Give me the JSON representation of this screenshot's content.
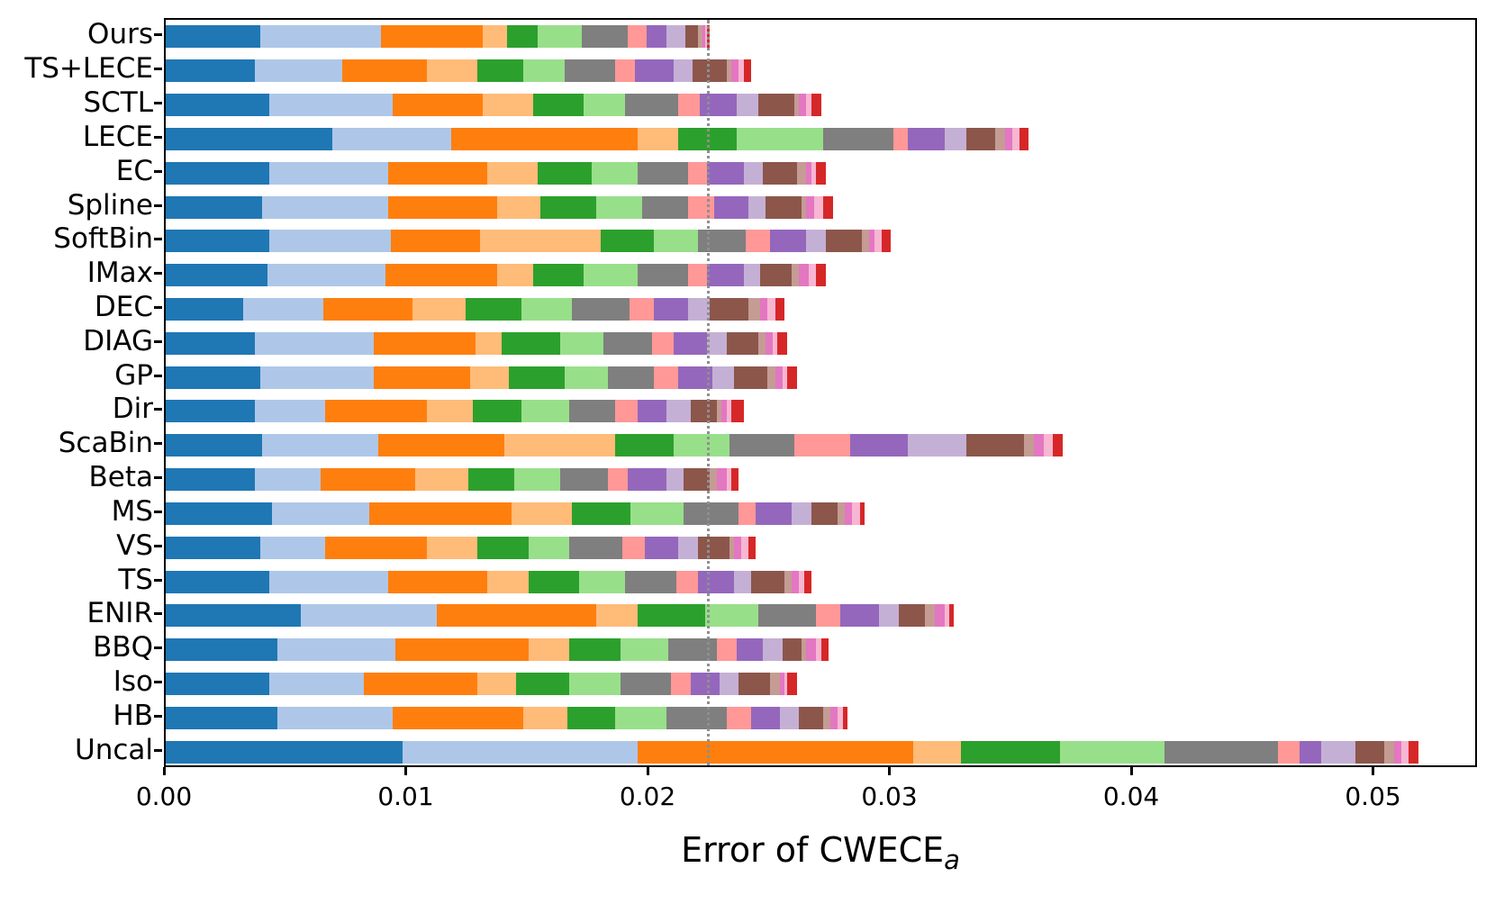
{
  "figure": {
    "background": "#ffffff",
    "spine_color": "#000000",
    "xlabel_base": "Error of CWECE",
    "xlabel_sub": "a"
  },
  "chart_data": {
    "type": "bar",
    "orientation": "horizontal-stacked",
    "title": "",
    "xlabel": "Error of CWECE_a",
    "ylabel": "",
    "grid": false,
    "legend": "none",
    "xlim": [
      0,
      0.0543
    ],
    "x_ticks": [
      "0.00",
      "0.01",
      "0.02",
      "0.03",
      "0.04",
      "0.05"
    ],
    "x_tick_values": [
      0,
      0.01,
      0.02,
      0.03,
      0.04,
      0.05
    ],
    "reference_line_x": 0.0224,
    "reference_line_color": "#8f8f8f",
    "reference_line_style": "dotted",
    "segment_names": [
      "blue",
      "light-blue",
      "orange",
      "light-orange",
      "green",
      "light-green",
      "gray",
      "salmon",
      "purple",
      "light-purple",
      "brown",
      "light-brown",
      "magenta",
      "light-pink",
      "red"
    ],
    "segment_colors": [
      "#1f77b4",
      "#aec7e8",
      "#ff7f0e",
      "#ffbb78",
      "#2ca02c",
      "#98df8a",
      "#7f7f7f",
      "#ff9896",
      "#9467bd",
      "#c5b0d5",
      "#8c564b",
      "#c49c94",
      "#e377c2",
      "#f7b6d2",
      "#d62728"
    ],
    "categories": [
      "Ours",
      "TS+LECE",
      "SCTL",
      "LECE",
      "EC",
      "Spline",
      "SoftBin",
      "IMax",
      "DEC",
      "DIAG",
      "GP",
      "Dir",
      "ScaBin",
      "Beta",
      "MS",
      "VS",
      "TS",
      "ENIR",
      "BBQ",
      "Iso",
      "HB",
      "Uncal"
    ],
    "values": [
      [
        0.0039,
        0.005,
        0.0042,
        0.001,
        0.0013,
        0.0018,
        0.0019,
        0.0008,
        0.0008,
        0.0008,
        0.0005,
        0.0002,
        0.0001,
        0.0001,
        0.0001
      ],
      [
        0.0037,
        0.0036,
        0.0035,
        0.0021,
        0.0019,
        0.0017,
        0.0021,
        0.0008,
        0.0016,
        0.0008,
        0.0014,
        0.0002,
        0.0003,
        0.0002,
        0.0003
      ],
      [
        0.0043,
        0.0051,
        0.0037,
        0.0021,
        0.0021,
        0.0017,
        0.0022,
        0.0009,
        0.0015,
        0.0009,
        0.0015,
        0.0002,
        0.0003,
        0.0002,
        0.0004
      ],
      [
        0.0069,
        0.0049,
        0.0077,
        0.0017,
        0.0024,
        0.0036,
        0.0029,
        0.0006,
        0.0015,
        0.0009,
        0.0012,
        0.0004,
        0.0003,
        0.0003,
        0.0004
      ],
      [
        0.0043,
        0.0049,
        0.0041,
        0.0021,
        0.0022,
        0.0019,
        0.0021,
        0.0008,
        0.0015,
        0.0008,
        0.0014,
        0.0004,
        0.0002,
        0.0002,
        0.0004
      ],
      [
        0.004,
        0.0052,
        0.0045,
        0.0018,
        0.0023,
        0.0019,
        0.0019,
        0.0011,
        0.0014,
        0.0007,
        0.0015,
        0.0002,
        0.0003,
        0.0004,
        0.0004
      ],
      [
        0.0043,
        0.005,
        0.0037,
        0.005,
        0.0022,
        0.0018,
        0.002,
        0.001,
        0.0015,
        0.0008,
        0.0015,
        0.0003,
        0.0002,
        0.0003,
        0.0004
      ],
      [
        0.0042,
        0.0049,
        0.0046,
        0.0015,
        0.0021,
        0.0022,
        0.0021,
        0.0008,
        0.0015,
        0.0007,
        0.0013,
        0.0003,
        0.0004,
        0.0003,
        0.0004
      ],
      [
        0.0032,
        0.0033,
        0.0037,
        0.0022,
        0.0023,
        0.0021,
        0.0024,
        0.001,
        0.0014,
        0.0009,
        0.0016,
        0.0005,
        0.0003,
        0.0003,
        0.0004
      ],
      [
        0.0037,
        0.0049,
        0.0042,
        0.0011,
        0.0024,
        0.0018,
        0.002,
        0.0009,
        0.0014,
        0.0008,
        0.0013,
        0.0003,
        0.0003,
        0.0002,
        0.0004
      ],
      [
        0.0039,
        0.0047,
        0.004,
        0.0016,
        0.0023,
        0.0018,
        0.0019,
        0.001,
        0.0014,
        0.0009,
        0.0014,
        0.0003,
        0.0003,
        0.0002,
        0.0004
      ],
      [
        0.0037,
        0.0029,
        0.0042,
        0.0019,
        0.002,
        0.002,
        0.0019,
        0.0009,
        0.0012,
        0.001,
        0.0011,
        0.0002,
        0.0002,
        0.0002,
        0.0005
      ],
      [
        0.004,
        0.0048,
        0.0052,
        0.0046,
        0.0024,
        0.0023,
        0.0027,
        0.0023,
        0.0024,
        0.0024,
        0.0024,
        0.0004,
        0.0004,
        0.0004,
        0.0004
      ],
      [
        0.0037,
        0.0027,
        0.0039,
        0.0022,
        0.0019,
        0.0019,
        0.002,
        0.0008,
        0.0016,
        0.0007,
        0.0011,
        0.0003,
        0.0004,
        0.0002,
        0.0003
      ],
      [
        0.0044,
        0.004,
        0.0059,
        0.0025,
        0.0024,
        0.0022,
        0.0023,
        0.0007,
        0.0015,
        0.0008,
        0.0011,
        0.0003,
        0.0003,
        0.0003,
        0.0002
      ],
      [
        0.0039,
        0.0027,
        0.0042,
        0.0021,
        0.0021,
        0.0017,
        0.0022,
        0.0009,
        0.0014,
        0.0008,
        0.0013,
        0.0002,
        0.0003,
        0.0003,
        0.0003
      ],
      [
        0.0043,
        0.0049,
        0.0041,
        0.0017,
        0.0021,
        0.0019,
        0.0021,
        0.0009,
        0.0015,
        0.0007,
        0.0014,
        0.0003,
        0.0003,
        0.0002,
        0.0003
      ],
      [
        0.0056,
        0.0056,
        0.0066,
        0.0017,
        0.0028,
        0.0022,
        0.0024,
        0.001,
        0.0016,
        0.0008,
        0.0011,
        0.0004,
        0.0004,
        0.0002,
        0.0002
      ],
      [
        0.0046,
        0.0049,
        0.0055,
        0.0017,
        0.0021,
        0.002,
        0.002,
        0.0008,
        0.0011,
        0.0008,
        0.0008,
        0.0002,
        0.0004,
        0.0002,
        0.0003
      ],
      [
        0.0043,
        0.0039,
        0.0047,
        0.0016,
        0.0022,
        0.0021,
        0.0021,
        0.0008,
        0.0012,
        0.0008,
        0.0013,
        0.0004,
        0.0002,
        0.0001,
        0.0004
      ],
      [
        0.0046,
        0.0048,
        0.0054,
        0.0018,
        0.002,
        0.0021,
        0.0025,
        0.001,
        0.0012,
        0.0008,
        0.001,
        0.0003,
        0.0003,
        0.0002,
        0.0002
      ],
      [
        0.0098,
        0.0097,
        0.0114,
        0.002,
        0.0041,
        0.0043,
        0.0047,
        0.0009,
        0.0009,
        0.0014,
        0.0012,
        0.0004,
        0.0003,
        0.0003,
        0.0004
      ]
    ]
  }
}
